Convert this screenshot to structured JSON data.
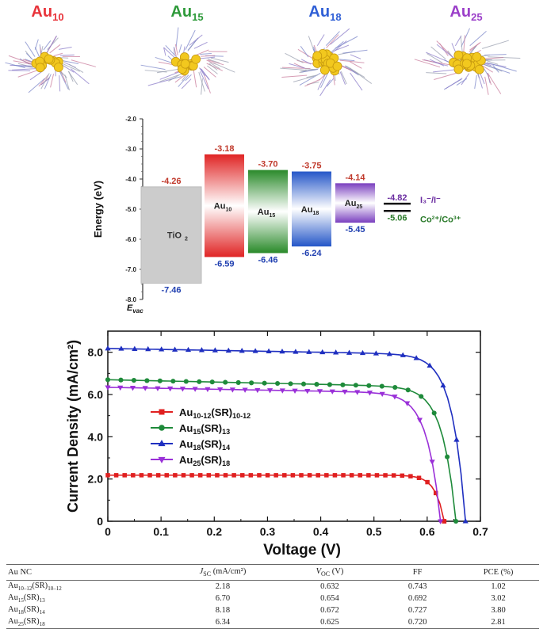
{
  "clusters": [
    {
      "base": "Au",
      "sub": "10",
      "color": "#e8333a"
    },
    {
      "base": "Au",
      "sub": "15",
      "color": "#2e9a3a"
    },
    {
      "base": "Au",
      "sub": "18",
      "color": "#2f5fd6"
    },
    {
      "base": "Au",
      "sub": "25",
      "color": "#9b3fc9"
    }
  ],
  "chart_data": [
    {
      "type": "energy-level-diagram",
      "ylabel": "Energy (eV)",
      "ylim": [
        -8.0,
        -2.0
      ],
      "yticks": [
        "-2.0",
        "-3.0",
        "-4.0",
        "-5.0",
        "-6.0",
        "-7.0",
        "-8.0"
      ],
      "axis_note": "E_vac",
      "bars": [
        {
          "label": "TiO2",
          "top": -4.26,
          "bottom": -7.46,
          "top_label": "-4.26",
          "bottom_label": "-7.46",
          "color": "#cccccc"
        },
        {
          "label_base": "Au",
          "label_sub": "10",
          "top": -3.18,
          "bottom": -6.59,
          "top_label": "-3.18",
          "bottom_label": "-6.59",
          "color": "#e02424"
        },
        {
          "label_base": "Au",
          "label_sub": "15",
          "top": -3.7,
          "bottom": -6.46,
          "top_label": "-3.70",
          "bottom_label": "-6.46",
          "color": "#2a8a2a"
        },
        {
          "label_base": "Au",
          "label_sub": "18",
          "top": -3.75,
          "bottom": -6.24,
          "top_label": "-3.75",
          "bottom_label": "-6.24",
          "color": "#2456c8"
        },
        {
          "label_base": "Au",
          "label_sub": "25",
          "top": -4.14,
          "bottom": -5.45,
          "top_label": "-4.14",
          "bottom_label": "-5.45",
          "color": "#7a3fbf"
        }
      ],
      "redox": [
        {
          "value": -4.82,
          "label": "-4.82",
          "couple": "I₃⁻/I⁻",
          "color": "#6a2ca0"
        },
        {
          "value": -5.06,
          "label": "-5.06",
          "couple": "Co²⁺/Co³⁺",
          "color": "#2a7a2a"
        }
      ]
    },
    {
      "type": "line",
      "xlabel": "Voltage (V)",
      "ylabel": "Current Density (mA/cm²)",
      "xlim": [
        0,
        0.7
      ],
      "ylim": [
        0,
        9.0
      ],
      "xticks": [
        "0",
        "0.1",
        "0.2",
        "0.3",
        "0.4",
        "0.5",
        "0.6",
        "0.7"
      ],
      "yticks": [
        "0",
        "2.0",
        "4.0",
        "6.0",
        "8.0"
      ],
      "series": [
        {
          "name_base": "Au",
          "name_sub1": "10-12",
          "name_mid": "(SR)",
          "name_sub2": "10-12",
          "color": "#e02020",
          "marker": "square",
          "jsc": 2.18,
          "voc": 0.632,
          "knee": 0.5,
          "steep": 6
        },
        {
          "name_base": "Au",
          "name_sub1": "15",
          "name_mid": "(SR)",
          "name_sub2": "13",
          "color": "#1e8a3a",
          "marker": "circle",
          "jsc": 6.7,
          "voc": 0.654,
          "knee": 0.42,
          "steep": 4,
          "drift": 0.55
        },
        {
          "name_base": "Au",
          "name_sub1": "18",
          "name_mid": "(SR)",
          "name_sub2": "14",
          "color": "#1f2fc0",
          "marker": "triangle-up",
          "jsc": 8.18,
          "voc": 0.672,
          "knee": 0.46,
          "steep": 4,
          "drift": 0.45
        },
        {
          "name_base": "Au",
          "name_sub1": "25",
          "name_mid": "(SR)",
          "name_sub2": "18",
          "color": "#9a30d8",
          "marker": "triangle-down",
          "jsc": 6.34,
          "voc": 0.625,
          "knee": 0.42,
          "steep": 4,
          "drift": 0.45
        }
      ]
    }
  ],
  "table": {
    "headers": [
      "Au NC",
      "J_SC (mA/cm²)",
      "V_OC (V)",
      "FF",
      "PCE (%)"
    ],
    "rows": [
      {
        "name_sub1": "10–12",
        "name_sub2": "10–12",
        "jsc": "2.18",
        "voc": "0.632",
        "ff": "0.743",
        "pce": "1.02"
      },
      {
        "name_sub1": "15",
        "name_sub2": "13",
        "jsc": "6.70",
        "voc": "0.654",
        "ff": "0.692",
        "pce": "3.02"
      },
      {
        "name_sub1": "18",
        "name_sub2": "14",
        "jsc": "8.18",
        "voc": "0.672",
        "ff": "0.727",
        "pce": "3.80"
      },
      {
        "name_sub1": "25",
        "name_sub2": "18",
        "jsc": "6.34",
        "voc": "0.625",
        "ff": "0.720",
        "pce": "2.81"
      }
    ]
  }
}
